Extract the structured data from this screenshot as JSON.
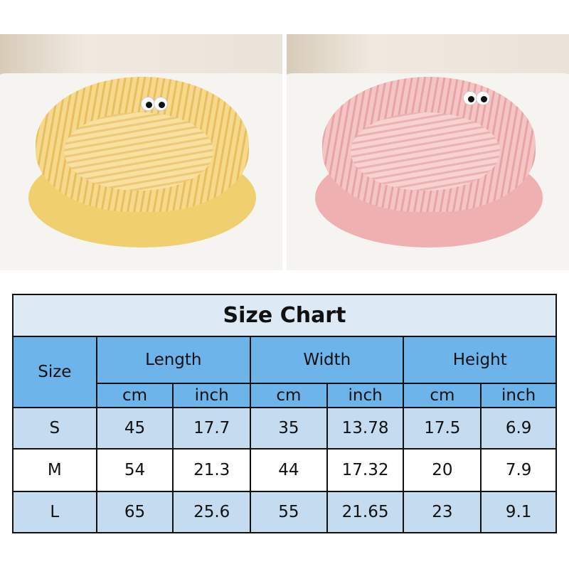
{
  "photos": [
    {
      "name": "yellow-bed",
      "color": "#f3d27a",
      "stripe": "#e9c064"
    },
    {
      "name": "pink-bed",
      "color": "#f2b9b9",
      "stripe": "#e7a3a5"
    }
  ],
  "size_chart": {
    "title": "Size Chart",
    "size_header": "Size",
    "groups": [
      "Length",
      "Width",
      "Height"
    ],
    "units": [
      "cm",
      "inch",
      "cm",
      "inch",
      "cm",
      "inch"
    ],
    "rows": [
      [
        "S",
        "45",
        "17.7",
        "35",
        "13.78",
        "17.5",
        "6.9"
      ],
      [
        "M",
        "54",
        "21.3",
        "44",
        "17.32",
        "20",
        "7.9"
      ],
      [
        "L",
        "65",
        "25.6",
        "55",
        "21.65",
        "23",
        "9.1"
      ]
    ],
    "colors": {
      "title_bg": "#dde9f5",
      "header_bg": "#6cb4ea",
      "alt_row_bg": "#c5dbf0"
    }
  }
}
